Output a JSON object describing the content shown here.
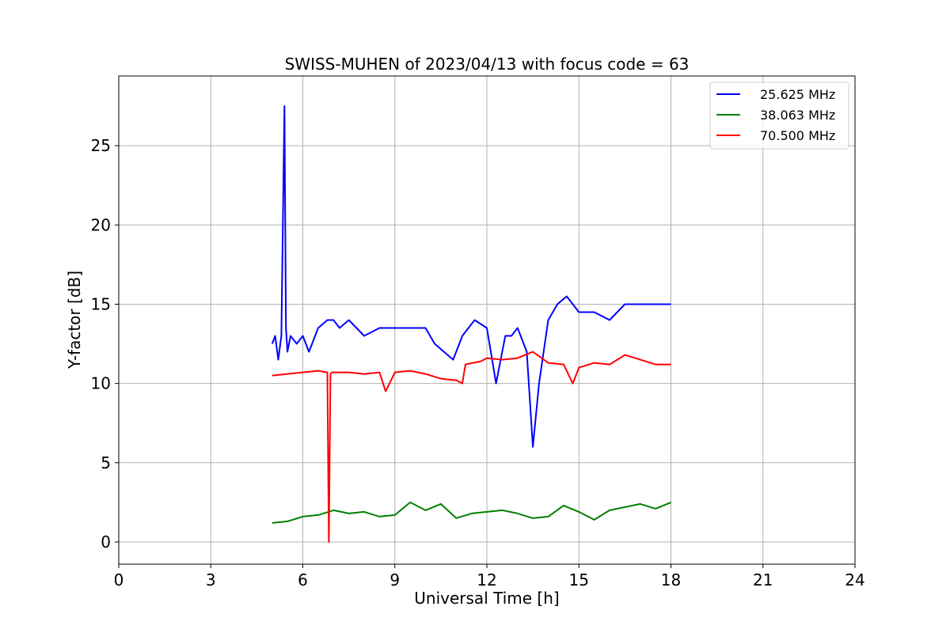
{
  "chart_data": {
    "type": "line",
    "title": "SWISS-MUHEN of 2023/04/13 with focus code = 63",
    "xlabel": "Universal Time [h]",
    "ylabel": "Y-factor [dB]",
    "xlim": [
      0,
      24
    ],
    "ylim": [
      -1.4,
      29.4
    ],
    "xticks": [
      0,
      3,
      6,
      9,
      12,
      15,
      18,
      21,
      24
    ],
    "yticks": [
      0,
      5,
      10,
      15,
      20,
      25
    ],
    "grid": true,
    "legend_position": "top-right",
    "series": [
      {
        "name": "25.625 MHz",
        "color": "#0000ff",
        "x": [
          5.0,
          5.1,
          5.2,
          5.3,
          5.4,
          5.45,
          5.5,
          5.6,
          5.8,
          6.0,
          6.2,
          6.5,
          6.8,
          7.0,
          7.2,
          7.5,
          8.0,
          8.5,
          9.0,
          9.5,
          10.0,
          10.3,
          10.6,
          10.9,
          11.2,
          11.6,
          12.0,
          12.3,
          12.6,
          12.8,
          13.0,
          13.3,
          13.5,
          13.7,
          14.0,
          14.3,
          14.6,
          15.0,
          15.5,
          16.0,
          16.5,
          17.0,
          17.5,
          18.0
        ],
        "y": [
          12.5,
          13.0,
          11.5,
          13.0,
          27.5,
          13.5,
          12.0,
          13.0,
          12.5,
          13.0,
          12.0,
          13.5,
          14.0,
          14.0,
          13.5,
          14.0,
          13.0,
          13.5,
          13.5,
          13.5,
          13.5,
          12.5,
          12.0,
          11.5,
          13.0,
          14.0,
          13.5,
          10.0,
          13.0,
          13.0,
          13.5,
          12.0,
          6.0,
          10.0,
          14.0,
          15.0,
          15.5,
          14.5,
          14.5,
          14.0,
          15.0,
          15.0,
          15.0,
          15.0
        ]
      },
      {
        "name": "38.063 MHz",
        "color": "#008000",
        "x": [
          5.0,
          5.5,
          6.0,
          6.5,
          7.0,
          7.5,
          8.0,
          8.5,
          9.0,
          9.5,
          10.0,
          10.5,
          11.0,
          11.5,
          12.0,
          12.5,
          13.0,
          13.5,
          14.0,
          14.5,
          15.0,
          15.5,
          16.0,
          16.5,
          17.0,
          17.5,
          18.0
        ],
        "y": [
          1.2,
          1.3,
          1.6,
          1.7,
          2.0,
          1.8,
          1.9,
          1.6,
          1.7,
          2.5,
          2.0,
          2.4,
          1.5,
          1.8,
          1.9,
          2.0,
          1.8,
          1.5,
          1.6,
          2.3,
          1.9,
          1.4,
          2.0,
          2.2,
          2.4,
          2.1,
          2.5
        ]
      },
      {
        "name": "70.500 MHz",
        "color": "#ff0000",
        "x": [
          5.0,
          5.5,
          6.0,
          6.5,
          6.8,
          6.85,
          6.9,
          6.95,
          7.2,
          7.5,
          8.0,
          8.5,
          8.7,
          9.0,
          9.5,
          10.0,
          10.5,
          11.0,
          11.2,
          11.3,
          11.8,
          12.0,
          12.5,
          13.0,
          13.5,
          14.0,
          14.5,
          14.8,
          15.0,
          15.5,
          16.0,
          16.5,
          17.0,
          17.5,
          18.0
        ],
        "y": [
          10.5,
          10.6,
          10.7,
          10.8,
          10.7,
          0.0,
          10.6,
          10.7,
          10.7,
          10.7,
          10.6,
          10.7,
          9.5,
          10.7,
          10.8,
          10.6,
          10.3,
          10.2,
          10.0,
          11.2,
          11.4,
          11.6,
          11.5,
          11.6,
          12.0,
          11.3,
          11.2,
          10.0,
          11.0,
          11.3,
          11.2,
          11.8,
          11.5,
          11.2,
          11.2
        ]
      }
    ]
  }
}
